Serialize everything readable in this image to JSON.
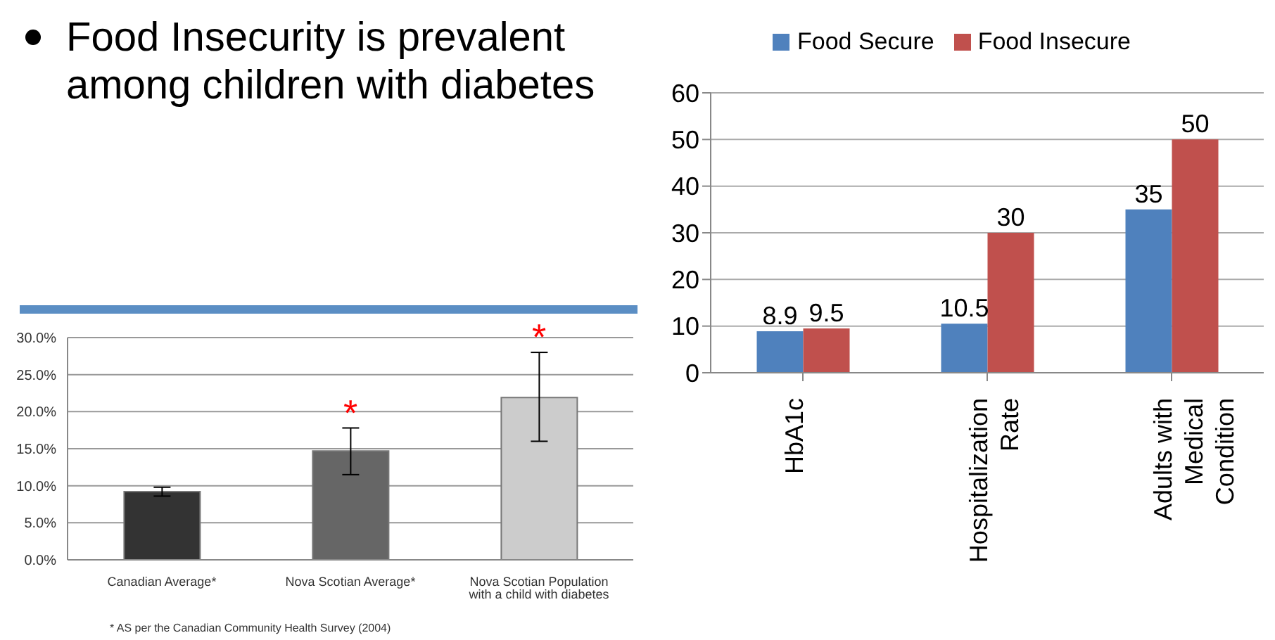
{
  "chart_data": [
    {
      "type": "bar",
      "title": "Food Insecurity is prevalent among children with diabetes",
      "categories": [
        "Canadian Average*",
        "Nova Scotian Average*",
        "Nova Scotian Population with a child with diabetes"
      ],
      "values": [
        9.2,
        14.7,
        21.9
      ],
      "colors": [
        "#333333",
        "#666666",
        "#cccccc"
      ],
      "errors": [
        [
          8.6,
          9.8
        ],
        [
          11.5,
          17.8
        ],
        [
          16,
          28
        ]
      ],
      "ylim": [
        0,
        30
      ],
      "yticks": [
        {
          "value": 0,
          "label": "0.0%"
        },
        {
          "value": 5,
          "label": "5.0%"
        },
        {
          "value": 10,
          "label": "10.0%"
        },
        {
          "value": 15,
          "label": "15.0%"
        },
        {
          "value": 20,
          "label": "20.0%"
        },
        {
          "value": 25,
          "label": "25.0%"
        },
        {
          "value": 30,
          "label": "30.0%"
        }
      ],
      "grid": "y",
      "annotations": [
        {
          "text": "*",
          "x": "Nova Scotian Average*",
          "y": 17.8
        },
        {
          "text": "*",
          "x": "Nova Scotian Population with a child with diabetes",
          "y": 28
        },
        "* AS per the Canadian Community Health Survey (2004)"
      ]
    },
    {
      "type": "bar",
      "categories": [
        "HbA1c",
        "Hospitalization Rate",
        "Adults with Medical Condition"
      ],
      "series": [
        {
          "name": "Food Secure",
          "color": "#4f81bd",
          "values": [
            8.9,
            10.5,
            35
          ]
        },
        {
          "name": "Food Insecure",
          "color": "#c0504d",
          "values": [
            9.5,
            30,
            50
          ]
        }
      ],
      "ylim": [
        0,
        60
      ],
      "yticks": [
        0,
        10,
        20,
        30,
        40,
        50,
        60
      ],
      "grid": "y",
      "legend": "top",
      "data_labels": true
    }
  ]
}
